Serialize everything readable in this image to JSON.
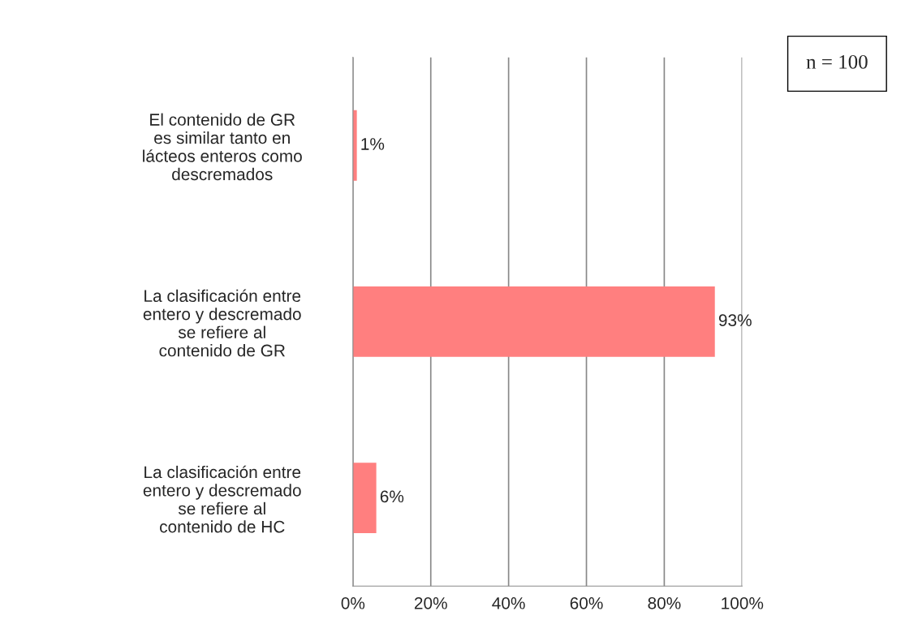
{
  "chart_data": {
    "type": "bar",
    "orientation": "horizontal",
    "categories": [
      "El contenido de GR\nes similar tanto en\nlácteos enteros como\ndescremados",
      "La clasificación entre\nentero y descremado\nse refiere al\ncontenido de GR",
      "La clasificación entre\nentero y descremado\nse refiere al\ncontenido de HC"
    ],
    "values": [
      1,
      93,
      6
    ],
    "color": "#ff7f7f",
    "value_labels": [
      "1%",
      "93%",
      "6%"
    ],
    "xlim": [
      0,
      100
    ],
    "xticks": [
      {
        "value": 0,
        "label": "0%"
      },
      {
        "value": 20,
        "label": "20%"
      },
      {
        "value": 40,
        "label": "40%"
      },
      {
        "value": 60,
        "label": "60%"
      },
      {
        "value": 80,
        "label": "80%"
      },
      {
        "value": 100,
        "label": "100%"
      }
    ],
    "grid": "x",
    "annotations": [
      "n = 100"
    ]
  }
}
